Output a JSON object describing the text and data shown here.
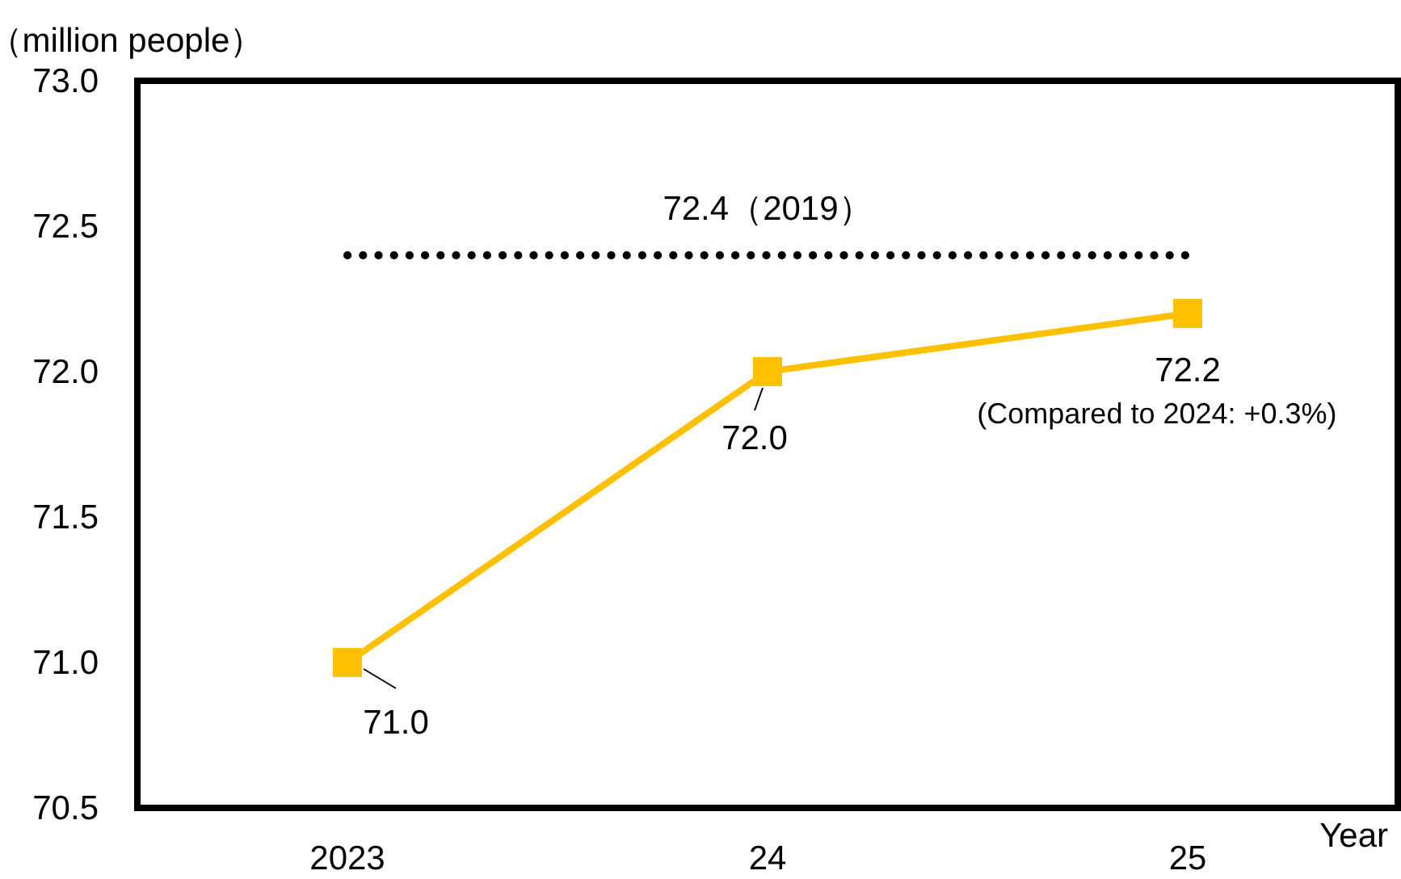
{
  "chart_data": {
    "type": "line",
    "ylabel": "（million people）",
    "xlabel": "Year",
    "categories": [
      "2023",
      "24",
      "25"
    ],
    "series": [
      {
        "color": "#ffc000",
        "values": [
          71.0,
          72.0,
          72.2
        ],
        "value_labels": [
          "71.0",
          "72.0",
          "72.2"
        ]
      }
    ],
    "ylim": [
      70.5,
      73.0
    ],
    "yticks": [
      {
        "value": 70.5,
        "label": "70.5"
      },
      {
        "value": 71.0,
        "label": "71.0"
      },
      {
        "value": 71.5,
        "label": "71.5"
      },
      {
        "value": 72.0,
        "label": "72.0"
      },
      {
        "value": 72.5,
        "label": "72.5"
      },
      {
        "value": 73.0,
        "label": "73.0"
      }
    ],
    "ref_lines": [
      {
        "axis": "y",
        "value": 72.4,
        "label": "72.4（2019）",
        "color": "#000000",
        "line_style": "dotted"
      }
    ],
    "annotations": [
      "(Compared to 2024: +0.3%)"
    ],
    "marker": "square",
    "line_style": "solid",
    "grid": false
  }
}
